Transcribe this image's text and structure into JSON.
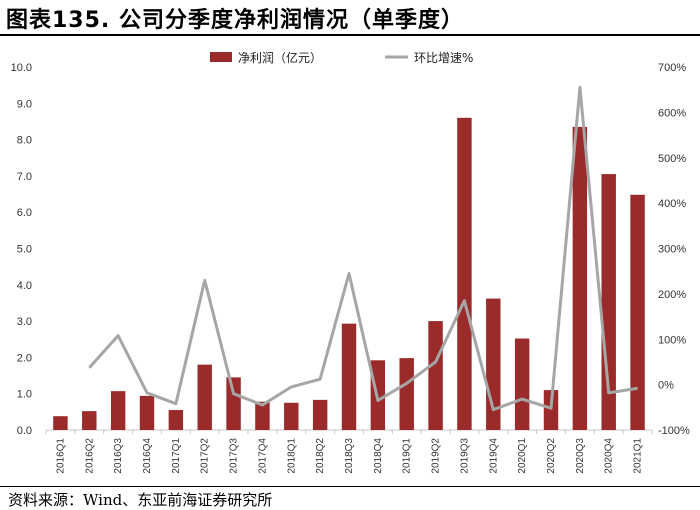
{
  "header": {
    "title": "图表135. 公司分季度净利润情况（单季度）"
  },
  "footer": {
    "source": "资料来源：Wind、东亚前海证券研究所"
  },
  "colors": {
    "bar": "#9b2a2a",
    "line": "#a6a6a6",
    "axis": "#c8c8c8"
  },
  "chart_data": {
    "type": "bar",
    "title": "",
    "categories": [
      "2016Q1",
      "2016Q2",
      "2016Q3",
      "2016Q4",
      "2017Q1",
      "2017Q2",
      "2017Q3",
      "2017Q4",
      "2018Q1",
      "2018Q2",
      "2018Q3",
      "2018Q4",
      "2019Q1",
      "2019Q2",
      "2019Q3",
      "2019Q4",
      "2020Q1",
      "2020Q2",
      "2020Q3",
      "2020Q4",
      "2021Q1"
    ],
    "series": [
      {
        "name": "净利润（亿元）",
        "type": "bar",
        "axis": "left",
        "values": [
          0.38,
          0.52,
          1.07,
          0.94,
          0.55,
          1.8,
          1.45,
          0.78,
          0.75,
          0.83,
          2.93,
          1.92,
          1.98,
          3.0,
          8.6,
          3.62,
          2.52,
          1.1,
          8.35,
          7.05,
          6.48
        ]
      },
      {
        "name": "环比增速%",
        "type": "line",
        "axis": "right",
        "values": [
          null,
          37,
          108,
          -18,
          -42,
          230,
          -20,
          -45,
          -5,
          12,
          245,
          -35,
          3,
          50,
          185,
          -55,
          -32,
          -52,
          655,
          -18,
          -8
        ]
      }
    ],
    "left_axis": {
      "min": 0,
      "max": 10,
      "step": 1,
      "ticks": [
        "0.0",
        "1.0",
        "2.0",
        "3.0",
        "4.0",
        "5.0",
        "6.0",
        "7.0",
        "8.0",
        "9.0",
        "10.0"
      ]
    },
    "right_axis": {
      "min": -100,
      "max": 700,
      "step": 100,
      "ticks": [
        "-100%",
        "0%",
        "100%",
        "200%",
        "300%",
        "400%",
        "500%",
        "600%",
        "700%"
      ]
    },
    "grid": false,
    "legend_position": "top-center"
  }
}
